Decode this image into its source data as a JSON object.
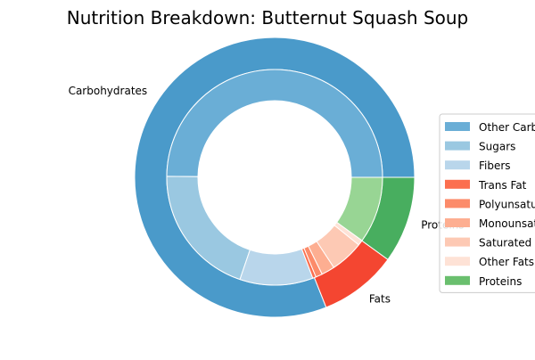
{
  "chart_data": {
    "type": "pie",
    "variant": "nested-donut",
    "title": "Nutrition Breakdown:  Butternut Squash Soup",
    "outer_ring": {
      "categories": [
        "Carbohydrates",
        "Fats",
        "Proteins"
      ],
      "values": [
        81,
        9,
        10
      ],
      "colors": [
        "#4a9aca",
        "#f44631",
        "#48ae5f"
      ]
    },
    "inner_ring": {
      "categories": [
        "Other Carbohydrates",
        "Sugars",
        "Fibers",
        "Trans Fat",
        "Polyunsaturated Fat",
        "Monounsaturated Fat",
        "Saturated Fat",
        "Other Fats",
        "Proteins"
      ],
      "values": [
        50,
        20,
        11,
        0.5,
        1,
        2,
        5,
        0.8,
        10
      ],
      "colors": [
        "#6aaed6",
        "#9ac8e1",
        "#b9d6eb",
        "#fc6f4f",
        "#fc8b6a",
        "#fdae91",
        "#fdc9b4",
        "#fee2d6",
        "#98d594"
      ]
    },
    "legend": {
      "placement": "right",
      "entries": [
        "Other Carbohydrates",
        "Sugars",
        "Fibers",
        "Trans Fat",
        "Polyunsaturated Fat",
        "Monounsaturated Fat",
        "Saturated Fat",
        "Other Fats",
        "Proteins"
      ],
      "colors": [
        "#6aaed6",
        "#9ac8e1",
        "#b9d6eb",
        "#fc6f4f",
        "#fc8b6a",
        "#fdae91",
        "#fdc9b4",
        "#fee2d6",
        "#6abf6e"
      ]
    },
    "start_angle_deg": 0,
    "direction": "counterclockwise"
  }
}
